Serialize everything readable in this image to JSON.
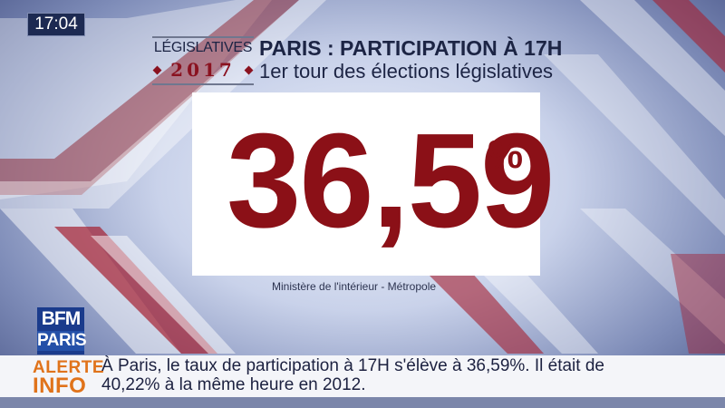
{
  "clock": "17:04",
  "header": {
    "logo_top": "LÉGISLATIVES",
    "logo_year": "2017",
    "title": "PARIS : PARTICIPATION À 17H",
    "subtitle": "1er tour des élections législatives"
  },
  "main": {
    "value": "36,59",
    "unit": "%",
    "source": "Ministère de l'intérieur - Métropole"
  },
  "channel": {
    "logo_top": "BFM",
    "logo_bottom": "PARIS"
  },
  "ticker": {
    "label_1": "ALERTE",
    "label_2": "INFO",
    "line_1": "À Paris, le taux de participation à 17H s'élève à 36,59%. Il était de",
    "line_2": "40,22% à la même heure en 2012."
  },
  "colors": {
    "accent_red": "#8b1017",
    "navy": "#1c2444",
    "alert_orange": "#e0731b",
    "channel_blue": "#1a3b8c"
  }
}
